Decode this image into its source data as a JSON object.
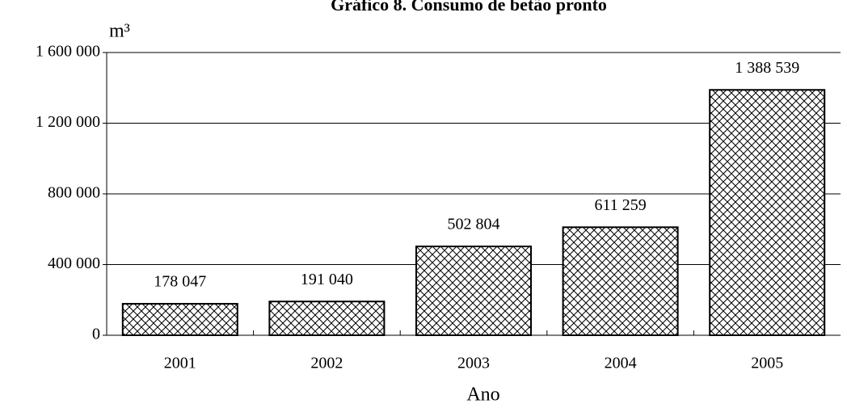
{
  "chart_data": {
    "type": "bar",
    "title": "Gráfico 8. Consumo de betão pronto",
    "y_unit": "m³",
    "xlabel": "Ano",
    "categories": [
      "2001",
      "2002",
      "2003",
      "2004",
      "2005"
    ],
    "values": [
      178047,
      191040,
      502804,
      611259,
      1388539
    ],
    "value_labels": [
      "178 047",
      "191 040",
      "502 804",
      "611 259",
      "1 388 539"
    ],
    "ylim": [
      0,
      1600000
    ],
    "yticks": [
      0,
      {
        "value": 400000,
        "label": "400 000"
      },
      {
        "value": 800000,
        "label": "800 000"
      },
      {
        "value": 1200000,
        "label": "1 200 000"
      },
      {
        "value": 1600000,
        "label": "1 600 000"
      }
    ],
    "grid": true
  }
}
